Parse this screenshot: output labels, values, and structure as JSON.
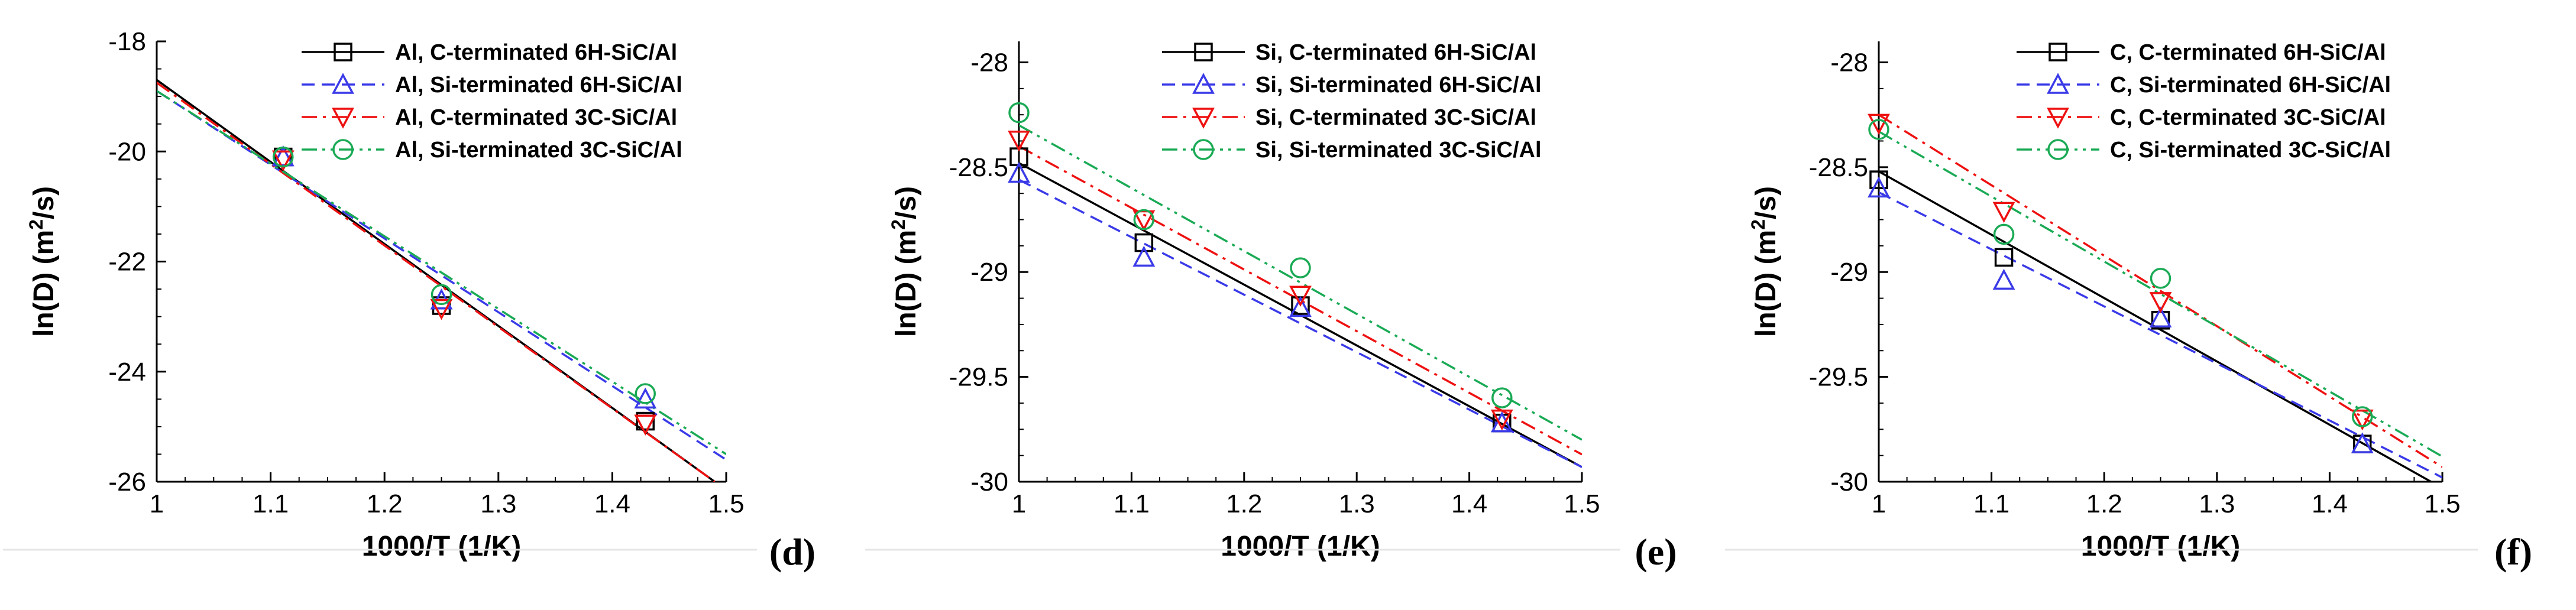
{
  "chart_data": [
    {
      "type": "line",
      "panel_label": "(d)",
      "xlabel": "1000/T (1/K)",
      "ylabel_main": "ln(D) (m",
      "ylabel_sup": "2",
      "ylabel_tail": "/s)",
      "xlim": [
        1,
        1.5
      ],
      "ylim": [
        -26,
        -18
      ],
      "xticks": [
        1,
        1.1,
        1.2,
        1.3,
        1.4,
        1.5
      ],
      "xtick_labels": [
        "1",
        "1.1",
        "1.2",
        "1.3",
        "1.4",
        "1.5"
      ],
      "yticks": [
        -26,
        -24,
        -22,
        -20,
        -18
      ],
      "ytick_labels": [
        "-26",
        "-24",
        "-22",
        "-20",
        "-18"
      ],
      "x": [
        1.111,
        1.25,
        1.429
      ],
      "legend_position": "top-right",
      "series": [
        {
          "name": "Al, C-terminated 6H-SiC/Al",
          "color": "#000000",
          "marker": "square",
          "dash": "solid",
          "values": [
            -20.1,
            -22.8,
            -24.9
          ],
          "fit": [
            [
              1.0,
              -18.7
            ],
            [
              1.49,
              -26.0
            ]
          ]
        },
        {
          "name": "Al, Si-terminated 6H-SiC/Al",
          "color": "#3a3ae8",
          "marker": "triangle-up",
          "dash": "dashed",
          "values": [
            -20.1,
            -22.7,
            -24.5
          ],
          "fit": [
            [
              1.0,
              -18.9
            ],
            [
              1.5,
              -25.6
            ]
          ]
        },
        {
          "name": "Al, C-terminated 3C-SiC/Al",
          "color": "#ee1111",
          "marker": "triangle-down",
          "dash": "dashdot",
          "values": [
            -20.15,
            -22.85,
            -24.95
          ],
          "fit": [
            [
              1.0,
              -18.75
            ],
            [
              1.49,
              -26.0
            ]
          ]
        },
        {
          "name": "Al, Si-terminated 3C-SiC/Al",
          "color": "#1aaa55",
          "marker": "circle",
          "dash": "dashdotdot",
          "values": [
            -20.1,
            -22.6,
            -24.4
          ],
          "fit": [
            [
              1.0,
              -18.9
            ],
            [
              1.5,
              -25.5
            ]
          ]
        }
      ]
    },
    {
      "type": "line",
      "panel_label": "(e)",
      "xlabel": "1000/T (1/K)",
      "ylabel_main": "ln(D) (m",
      "ylabel_sup": "2",
      "ylabel_tail": "/s)",
      "xlim": [
        1,
        1.5
      ],
      "ylim": [
        -30,
        -27.9
      ],
      "xticks": [
        1,
        1.1,
        1.2,
        1.3,
        1.4,
        1.5
      ],
      "xtick_labels": [
        "1",
        "1.1",
        "1.2",
        "1.3",
        "1.4",
        "1.5"
      ],
      "yticks": [
        -30,
        -29.5,
        -29,
        -28.5,
        -28
      ],
      "ytick_labels": [
        "-30",
        "-29.5",
        "-29",
        "-28.5",
        "-28"
      ],
      "x": [
        1.0,
        1.111,
        1.25,
        1.429
      ],
      "legend_position": "top-right",
      "series": [
        {
          "name": "Si, C-terminated 6H-SiC/Al",
          "color": "#000000",
          "marker": "square",
          "dash": "solid",
          "values": [
            -28.45,
            -28.86,
            -29.16,
            -29.72
          ],
          "fit": [
            [
              1.0,
              -28.48
            ],
            [
              1.5,
              -29.93
            ]
          ]
        },
        {
          "name": "Si, Si-terminated 6H-SiC/Al",
          "color": "#3a3ae8",
          "marker": "triangle-up",
          "dash": "dashed",
          "values": [
            -28.53,
            -28.93,
            -29.17,
            -29.72
          ],
          "fit": [
            [
              1.0,
              -28.56
            ],
            [
              1.5,
              -29.93
            ]
          ]
        },
        {
          "name": "Si, C-terminated 3C-SiC/Al",
          "color": "#ee1111",
          "marker": "triangle-down",
          "dash": "dashdot",
          "values": [
            -28.37,
            -28.75,
            -29.11,
            -29.7
          ],
          "fit": [
            [
              1.0,
              -28.4
            ],
            [
              1.5,
              -29.87
            ]
          ]
        },
        {
          "name": "Si, Si-terminated 3C-SiC/Al",
          "color": "#1aaa55",
          "marker": "circle",
          "dash": "dashdotdot",
          "values": [
            -28.24,
            -28.75,
            -28.98,
            -29.6
          ],
          "fit": [
            [
              1.0,
              -28.3
            ],
            [
              1.5,
              -29.8
            ]
          ]
        }
      ]
    },
    {
      "type": "line",
      "panel_label": "(f)",
      "xlabel": "1000/T (1/K)",
      "ylabel_main": "ln(D) (m",
      "ylabel_sup": "2",
      "ylabel_tail": "/s)",
      "xlim": [
        1,
        1.5
      ],
      "ylim": [
        -30,
        -27.9
      ],
      "xticks": [
        1,
        1.1,
        1.2,
        1.3,
        1.4,
        1.5
      ],
      "xtick_labels": [
        "1",
        "1.1",
        "1.2",
        "1.3",
        "1.4",
        "1.5"
      ],
      "yticks": [
        -30,
        -29.5,
        -29,
        -28.5,
        -28
      ],
      "ytick_labels": [
        "-30",
        "-29.5",
        "-29",
        "-28.5",
        "-28"
      ],
      "x": [
        1.0,
        1.111,
        1.25,
        1.429
      ],
      "legend_position": "top-right",
      "series": [
        {
          "name": "C, C-terminated 6H-SiC/Al",
          "color": "#000000",
          "marker": "square",
          "dash": "solid",
          "values": [
            -28.56,
            -28.93,
            -29.23,
            -29.82
          ],
          "fit": [
            [
              1.0,
              -28.52
            ],
            [
              1.49,
              -30.0
            ]
          ]
        },
        {
          "name": "C, Si-terminated 6H-SiC/Al",
          "color": "#3a3ae8",
          "marker": "triangle-up",
          "dash": "dashed",
          "values": [
            -28.6,
            -29.04,
            -29.22,
            -29.82
          ],
          "fit": [
            [
              1.0,
              -28.62
            ],
            [
              1.5,
              -29.98
            ]
          ]
        },
        {
          "name": "C, C-terminated 3C-SiC/Al",
          "color": "#ee1111",
          "marker": "triangle-down",
          "dash": "dashdot",
          "values": [
            -28.29,
            -28.71,
            -29.14,
            -29.7
          ],
          "fit": [
            [
              1.0,
              -28.25
            ],
            [
              1.5,
              -29.93
            ]
          ]
        },
        {
          "name": "C, Si-terminated 3C-SiC/Al",
          "color": "#1aaa55",
          "marker": "circle",
          "dash": "dashdotdot",
          "values": [
            -28.32,
            -28.82,
            -29.03,
            -29.69
          ],
          "fit": [
            [
              1.0,
              -28.33
            ],
            [
              1.5,
              -29.88
            ]
          ]
        }
      ]
    }
  ]
}
